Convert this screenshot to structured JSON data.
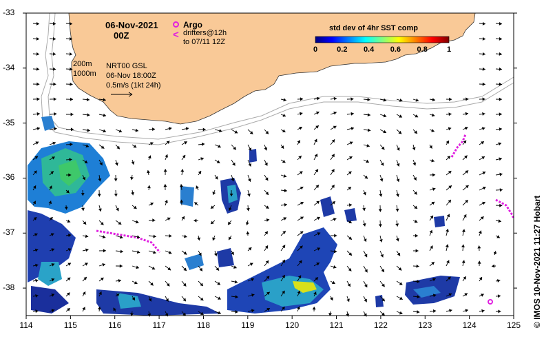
{
  "header": {
    "date": "06-Nov-2021",
    "hour": "00Z"
  },
  "legend_argo": {
    "title": "Argo",
    "drifters_line1": "drifters@12h",
    "drifters_line2": "to 07/11 12Z",
    "argo_color": "#e020e0",
    "drifter_color": "#e020e0"
  },
  "contours": {
    "line1": "200m",
    "line2": "1000m"
  },
  "currents": {
    "line1": "NRT00 GSL",
    "line2": "06-Nov 18:00Z",
    "line3": "0.5m/s (1kt 24h)"
  },
  "colorbar": {
    "title": "std dev of 4hr SST comp",
    "ticks": [
      "0",
      "0.2",
      "0.4",
      "0.6",
      "0.8",
      "1"
    ],
    "colormap": [
      "#00007f",
      "#0000ff",
      "#0080ff",
      "#00ffff",
      "#80ff80",
      "#ffff00",
      "#ff8000",
      "#ff0000",
      "#7f0000"
    ]
  },
  "axes": {
    "x_ticks": [
      "114",
      "115",
      "116",
      "117",
      "118",
      "119",
      "120",
      "121",
      "122",
      "123",
      "124",
      "125"
    ],
    "y_ticks": [
      "-33",
      "-34",
      "-35",
      "-36",
      "-37",
      "-38"
    ],
    "lon_range": [
      114,
      125
    ],
    "lat_range": [
      -38.5,
      -33
    ]
  },
  "colors": {
    "land": "#f9c997",
    "contour": "#aaaaaa",
    "ocean": "#ffffff"
  },
  "credit": "© IMOS 10-Nov-2021 11:27 Hobart"
}
